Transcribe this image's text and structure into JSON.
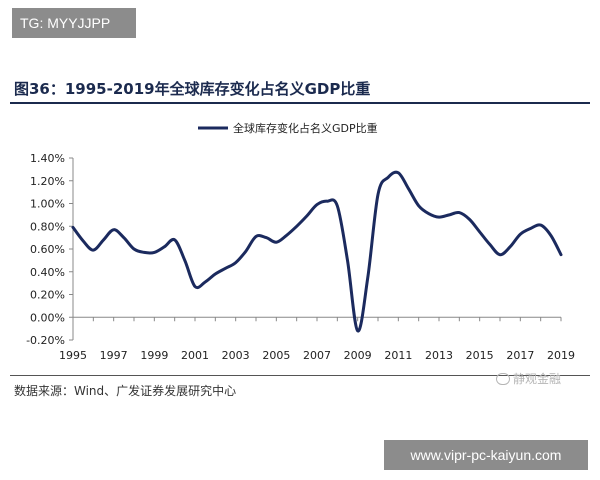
{
  "header": {
    "tag": "TG: MYYJJPP"
  },
  "figure": {
    "title": "图36：1995-2019年全球库存变化占名义GDP比重",
    "source": "数据来源：Wind、广发证券发展研究中心",
    "watermark": "静观金融"
  },
  "footer": {
    "url": "www.vipr-pc-kaiyun.com"
  },
  "chart_data": {
    "type": "line",
    "title": "",
    "xlabel": "",
    "ylabel": "",
    "legend": "top-center",
    "grid": false,
    "xlim": [
      1995,
      2019
    ],
    "ylim": [
      -0.2,
      1.4
    ],
    "x_ticks": [
      "1995",
      "1997",
      "1999",
      "2001",
      "2003",
      "2005",
      "2007",
      "2009",
      "2011",
      "2013",
      "2015",
      "2017",
      "2019"
    ],
    "y_ticks": [
      "-0.20%",
      "0.00%",
      "0.20%",
      "0.40%",
      "0.60%",
      "0.80%",
      "1.00%",
      "1.20%",
      "1.40%"
    ],
    "x": [
      1995,
      1995.5,
      1996,
      1996.5,
      1997,
      1997.5,
      1998,
      1998.5,
      1999,
      1999.5,
      2000,
      2000.5,
      2001,
      2001.5,
      2002,
      2002.5,
      2003,
      2003.5,
      2004,
      2004.5,
      2005,
      2005.5,
      2006,
      2006.5,
      2007,
      2007.5,
      2008,
      2008.5,
      2009,
      2009.5,
      2010,
      2010.5,
      2011,
      2011.5,
      2012,
      2012.5,
      2013,
      2013.5,
      2014,
      2014.5,
      2015,
      2015.5,
      2016,
      2016.5,
      2017,
      2017.5,
      2018,
      2018.5,
      2019
    ],
    "series": [
      {
        "name": "全球库存变化占名义GDP比重",
        "color": "#1b2a5e",
        "values": [
          0.79,
          0.67,
          0.59,
          0.68,
          0.77,
          0.7,
          0.6,
          0.57,
          0.57,
          0.62,
          0.68,
          0.5,
          0.27,
          0.31,
          0.38,
          0.43,
          0.48,
          0.58,
          0.71,
          0.7,
          0.66,
          0.72,
          0.8,
          0.89,
          0.99,
          1.02,
          0.98,
          0.5,
          -0.12,
          0.35,
          1.08,
          1.23,
          1.27,
          1.13,
          0.98,
          0.91,
          0.88,
          0.9,
          0.92,
          0.86,
          0.75,
          0.64,
          0.55,
          0.62,
          0.73,
          0.78,
          0.81,
          0.72,
          0.55
        ]
      }
    ]
  }
}
